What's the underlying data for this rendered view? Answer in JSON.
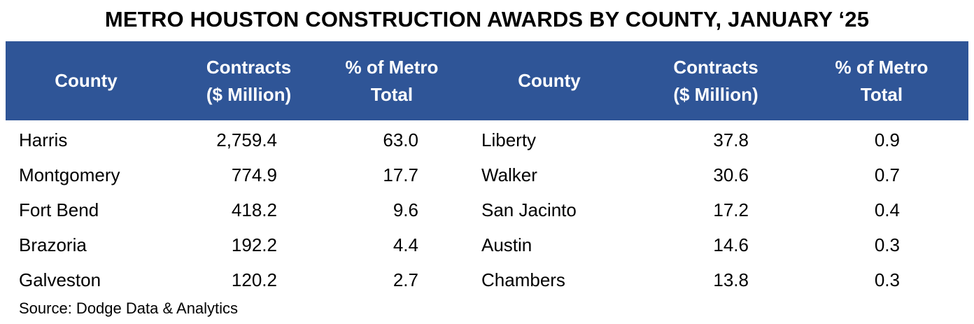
{
  "chart_data": {
    "type": "table",
    "title": "METRO HOUSTON CONSTRUCTION AWARDS BY COUNTY, JANUARY ‘25",
    "columns": [
      {
        "line1": "County",
        "line2": ""
      },
      {
        "line1": "Contracts",
        "line2": "($ Million)"
      },
      {
        "line1": "% of Metro",
        "line2": "Total"
      },
      {
        "line1": "County",
        "line2": ""
      },
      {
        "line1": "Contracts",
        "line2": "($ Million)"
      },
      {
        "line1": "% of Metro",
        "line2": "Total"
      }
    ],
    "rows": [
      [
        "Harris",
        "2,759.4",
        "63.0",
        "Liberty",
        "37.8",
        "0.9"
      ],
      [
        "Montgomery",
        "774.9",
        "17.7",
        "Walker",
        "30.6",
        "0.7"
      ],
      [
        "Fort Bend",
        "418.2",
        "9.6",
        "San Jacinto",
        "17.2",
        "0.4"
      ],
      [
        "Brazoria",
        "192.2",
        "4.4",
        "Austin",
        "14.6",
        "0.3"
      ],
      [
        "Galveston",
        "120.2",
        "2.7",
        "Chambers",
        "13.8",
        "0.3"
      ]
    ],
    "source": "Source: Dodge Data & Analytics"
  },
  "colors": {
    "header_background": "#2F5597",
    "header_text": "#ffffff",
    "body_text": "#000000"
  }
}
